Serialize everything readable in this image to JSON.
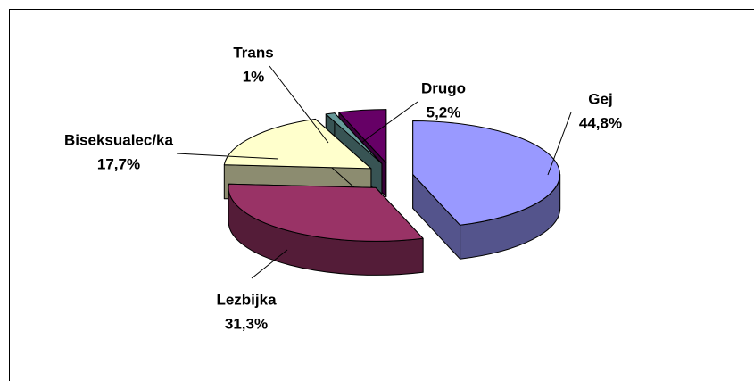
{
  "chart_data": {
    "type": "pie3d",
    "categories": [
      "Gej",
      "Lezbijka",
      "Biseksualec/ka",
      "Trans",
      "Drugo"
    ],
    "values": [
      44.8,
      31.3,
      17.7,
      1,
      5.2
    ],
    "value_labels": [
      "44,8%",
      "31,3%",
      "17,7%",
      "1%",
      "5,2%"
    ],
    "colors": [
      "#9999ff",
      "#993366",
      "#ffffcc",
      "#669999",
      "#660066"
    ]
  }
}
